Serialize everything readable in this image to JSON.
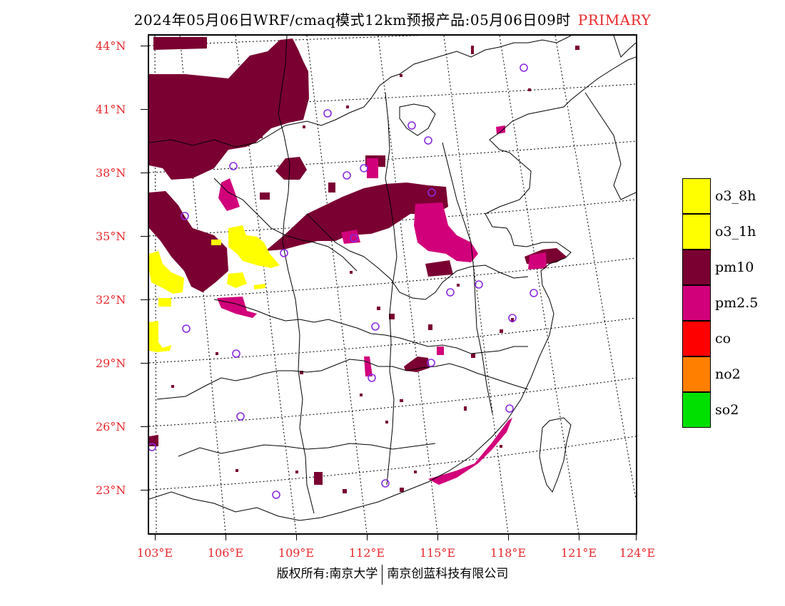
{
  "title": "2024年05月06日WRF/cmaq模式12km预报产品:05月06日09时",
  "title_tag": "PRIMARY",
  "lat_labels": [
    "44°N",
    "41°N",
    "38°N",
    "35°N",
    "32°N",
    "29°N",
    "26°N",
    "23°N"
  ],
  "lon_labels": [
    "103°E",
    "106°E",
    "109°E",
    "112°E",
    "115°E",
    "118°E",
    "121°E",
    "124°E"
  ],
  "legend": [
    {
      "label": "o3_8h",
      "color": "#ffff00"
    },
    {
      "label": "o3_1h",
      "color": "#ffff00"
    },
    {
      "label": "pm10",
      "color": "#7a0032"
    },
    {
      "label": "pm2.5",
      "color": "#d1007a"
    },
    {
      "label": "co",
      "color": "#ff0000"
    },
    {
      "label": "no2",
      "color": "#ff7f00"
    },
    {
      "label": "so2",
      "color": "#00e000"
    }
  ],
  "footer": {
    "left": "版权所有:南京大学",
    "right": "南京创蓝科技有限公司"
  }
}
